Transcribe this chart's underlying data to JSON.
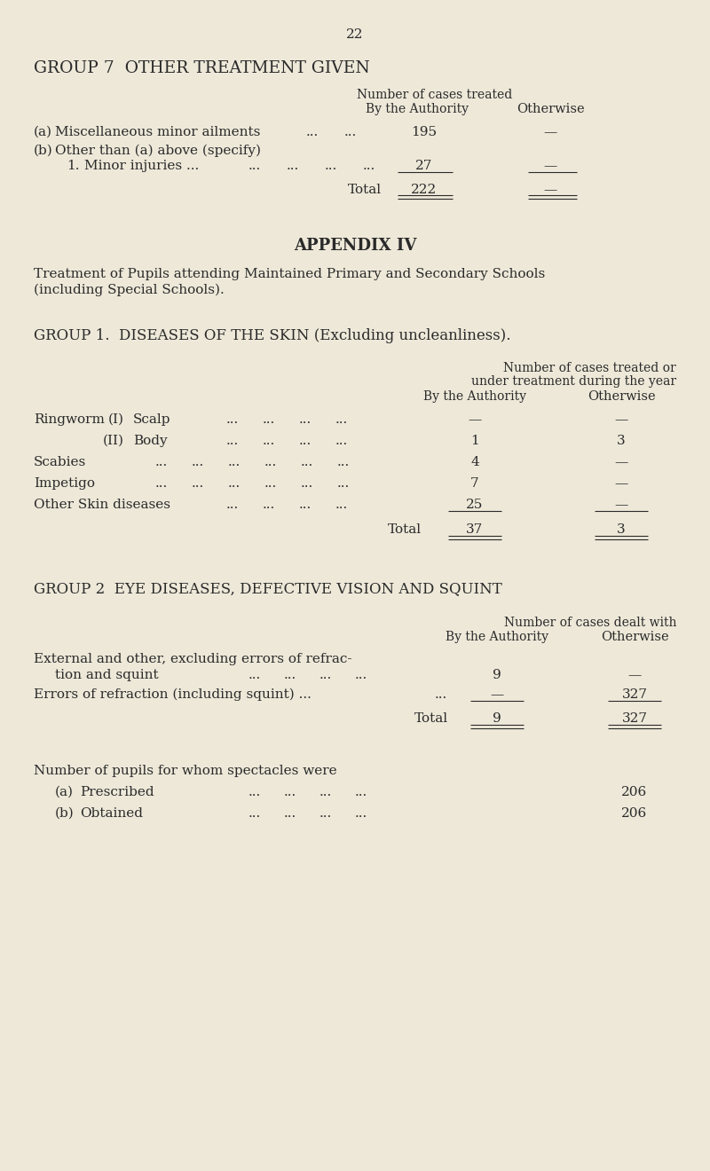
{
  "bg_color": "#EDE8D8",
  "text_color": "#2a2a2a",
  "page_number": "22",
  "g7_title": "GROUP 7  OTHER TREATMENT GIVEN",
  "g7_hdr1": "Number of cases treated",
  "g7_hdr_auth": "By the Authority",
  "g7_hdr_other": "Otherwise",
  "app_title": "APPENDIX IV",
  "app_line1": "Treatment of Pupils attending Maintained Primary and Secondary Schools",
  "app_line2": "(including Special Schools).",
  "g1_title": "GROUP 1.  DISEASES OF THE SKIN (Excluding uncleanliness).",
  "g1_hdr1": "Number of cases treated or",
  "g1_hdr2": "under treatment during the year",
  "g1_hdr_auth": "By the Authority",
  "g1_hdr_other": "Otherwise",
  "g2_title": "GROUP 2  EYE DISEASES, DEFECTIVE VISION AND SQUINT",
  "g2_hdr1": "Number of cases dealt with",
  "g2_hdr_auth": "By the Authority",
  "g2_hdr_other": "Otherwise",
  "spectacles_title": "Number of pupils for whom spectacles were"
}
